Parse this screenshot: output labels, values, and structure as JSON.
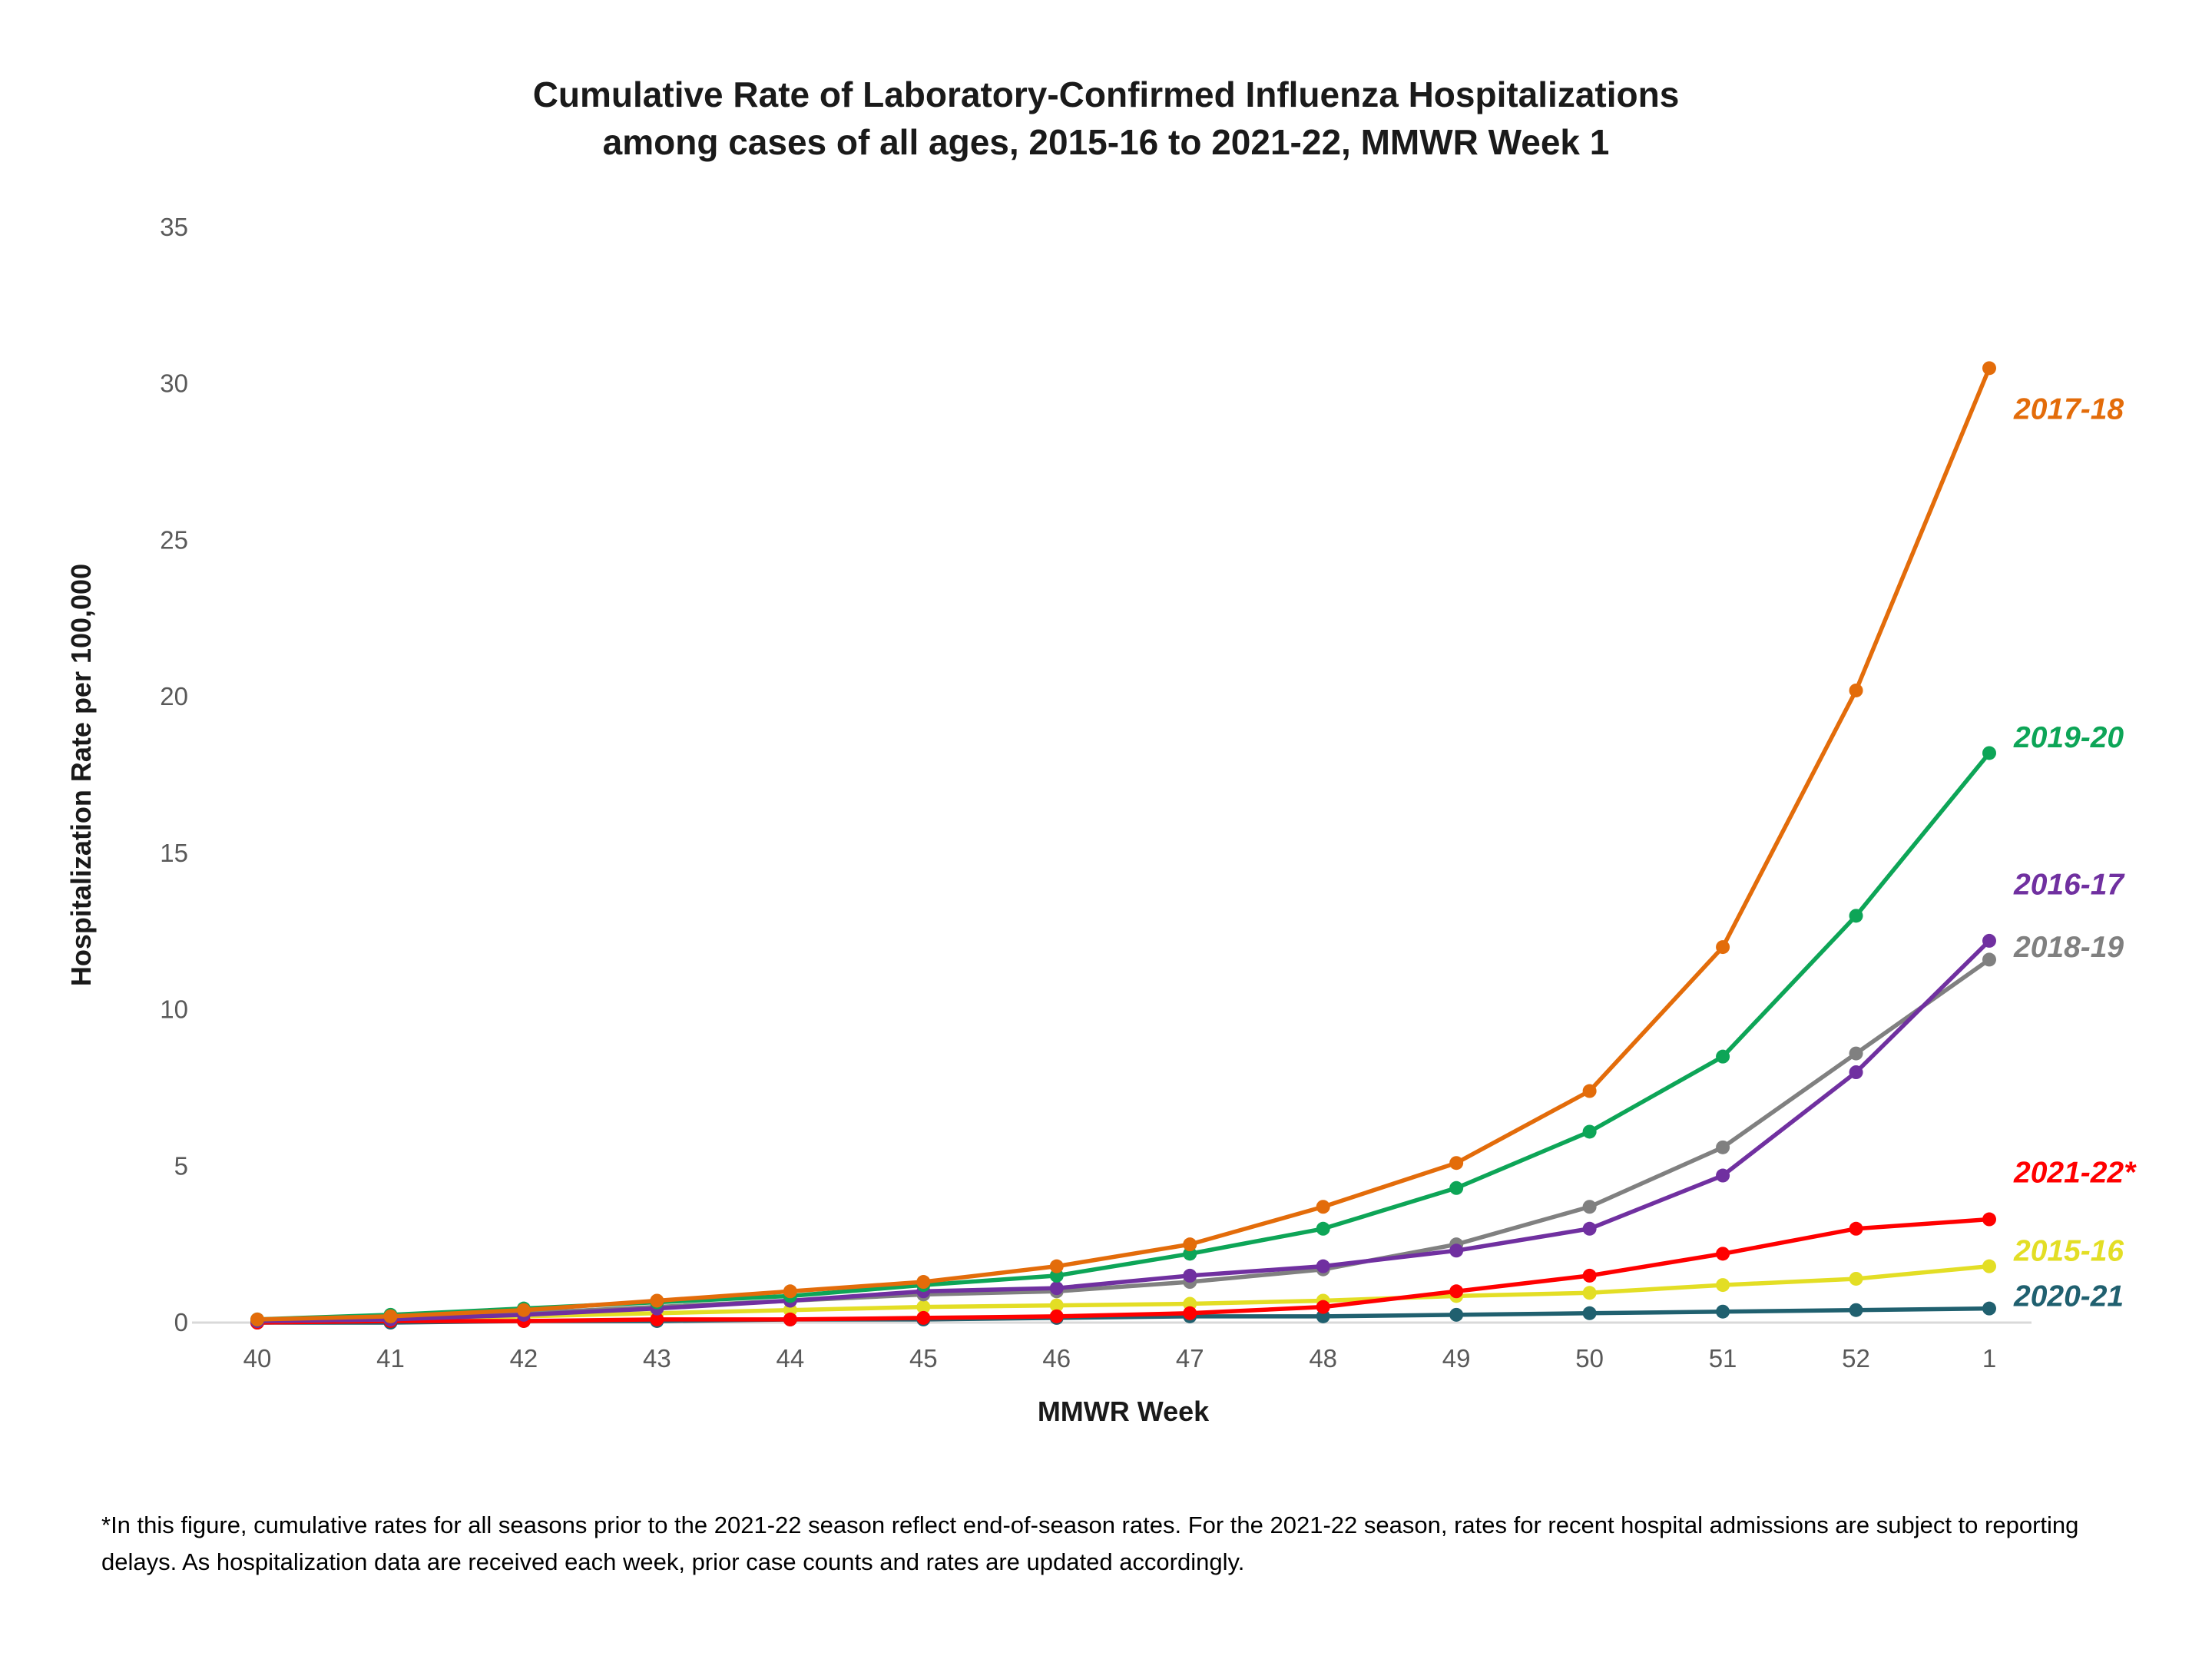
{
  "title": {
    "line1": "Cumulative Rate of Laboratory-Confirmed Influenza Hospitalizations",
    "line2": "among cases of all ages, 2015-16 to 2021-22, MMWR Week 1"
  },
  "footnote": "*In this figure, cumulative rates for all seasons prior to the 2021-22 season reflect end-of-season rates. For the 2021-22 season, rates for recent hospital admissions are subject to reporting delays. As hospitalization data are received each week, prior case counts and rates are updated accordingly.",
  "chart_data": {
    "type": "line",
    "title": "Cumulative Rate of Laboratory-Confirmed Influenza Hospitalizations among cases of all ages, 2015-16 to 2021-22, MMWR Week 1",
    "xlabel": "MMWR Week",
    "ylabel": "Hospitalization Rate per 100,000",
    "categories": [
      "40",
      "41",
      "42",
      "43",
      "44",
      "45",
      "46",
      "47",
      "48",
      "49",
      "50",
      "51",
      "52",
      "1"
    ],
    "y_ticks": [
      0,
      5,
      10,
      15,
      20,
      25,
      30,
      35
    ],
    "ylim": [
      0,
      35
    ],
    "grid": false,
    "legend_position": "end-of-line-labels-right",
    "marker": "circle",
    "series": [
      {
        "name": "2017-18",
        "color": "#E36C0A",
        "label_y": 29.2,
        "values": [
          0.1,
          0.2,
          0.4,
          0.7,
          1.0,
          1.3,
          1.8,
          2.5,
          3.7,
          5.1,
          7.4,
          12.0,
          20.2,
          30.5
        ]
      },
      {
        "name": "2019-20",
        "color": "#0DA557",
        "label_y": 18.7,
        "values": [
          0.1,
          0.25,
          0.45,
          0.65,
          0.85,
          1.2,
          1.5,
          2.2,
          3.0,
          4.3,
          6.1,
          8.5,
          13.0,
          18.2
        ]
      },
      {
        "name": "2016-17",
        "color": "#7030A0",
        "label_y": 14.0,
        "values": [
          0.05,
          0.1,
          0.25,
          0.45,
          0.7,
          1.0,
          1.1,
          1.5,
          1.8,
          2.3,
          3.0,
          4.7,
          8.0,
          12.2
        ]
      },
      {
        "name": "2018-19",
        "color": "#808080",
        "label_y": 12.0,
        "values": [
          0.05,
          0.1,
          0.3,
          0.5,
          0.7,
          0.9,
          1.0,
          1.3,
          1.7,
          2.5,
          3.7,
          5.6,
          8.6,
          11.6
        ]
      },
      {
        "name": "2021-22*",
        "color": "#FF0000",
        "label_y": 4.8,
        "values": [
          0.0,
          0.05,
          0.05,
          0.1,
          0.1,
          0.15,
          0.2,
          0.3,
          0.5,
          1.0,
          1.5,
          2.2,
          3.0,
          3.3
        ]
      },
      {
        "name": "2015-16",
        "color": "#E3DE25",
        "label_y": 2.3,
        "values": [
          0.05,
          0.1,
          0.2,
          0.3,
          0.4,
          0.5,
          0.55,
          0.6,
          0.7,
          0.85,
          0.95,
          1.2,
          1.4,
          1.8
        ]
      },
      {
        "name": "2020-21",
        "color": "#20606F",
        "label_y": 0.85,
        "values": [
          0.0,
          0.0,
          0.05,
          0.05,
          0.1,
          0.1,
          0.15,
          0.2,
          0.2,
          0.25,
          0.3,
          0.35,
          0.4,
          0.45
        ]
      }
    ]
  }
}
